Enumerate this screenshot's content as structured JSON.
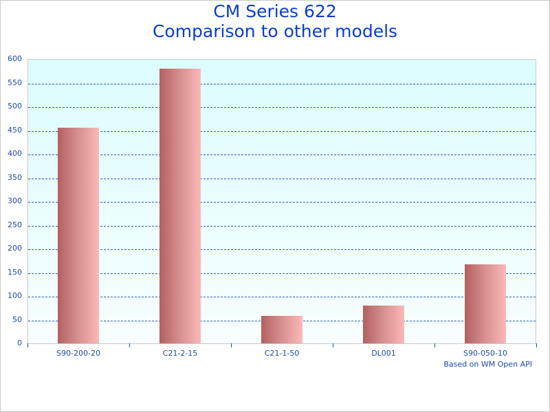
{
  "chart_data": {
    "type": "bar",
    "title": "CM Series 622",
    "subtitle": "Comparison to other models",
    "categories": [
      "S90-200-20",
      "C21-2-15",
      "C21-1-50",
      "DL001",
      "S90-050-10"
    ],
    "values": [
      455,
      580,
      58,
      80,
      167
    ],
    "xlabel": "",
    "ylabel": "",
    "ylim": [
      0,
      600
    ],
    "yticks": [
      0,
      50,
      100,
      150,
      200,
      250,
      300,
      350,
      400,
      450,
      500,
      550,
      600
    ],
    "grid": true,
    "legend": null,
    "annotation": "Based on WM Open API",
    "colors": {
      "bar_start": "#b36060",
      "bar_end": "#fcb8b8",
      "text": "#1a4ab0",
      "title": "#0a3fc4",
      "grid": "#2a5bb8"
    }
  }
}
